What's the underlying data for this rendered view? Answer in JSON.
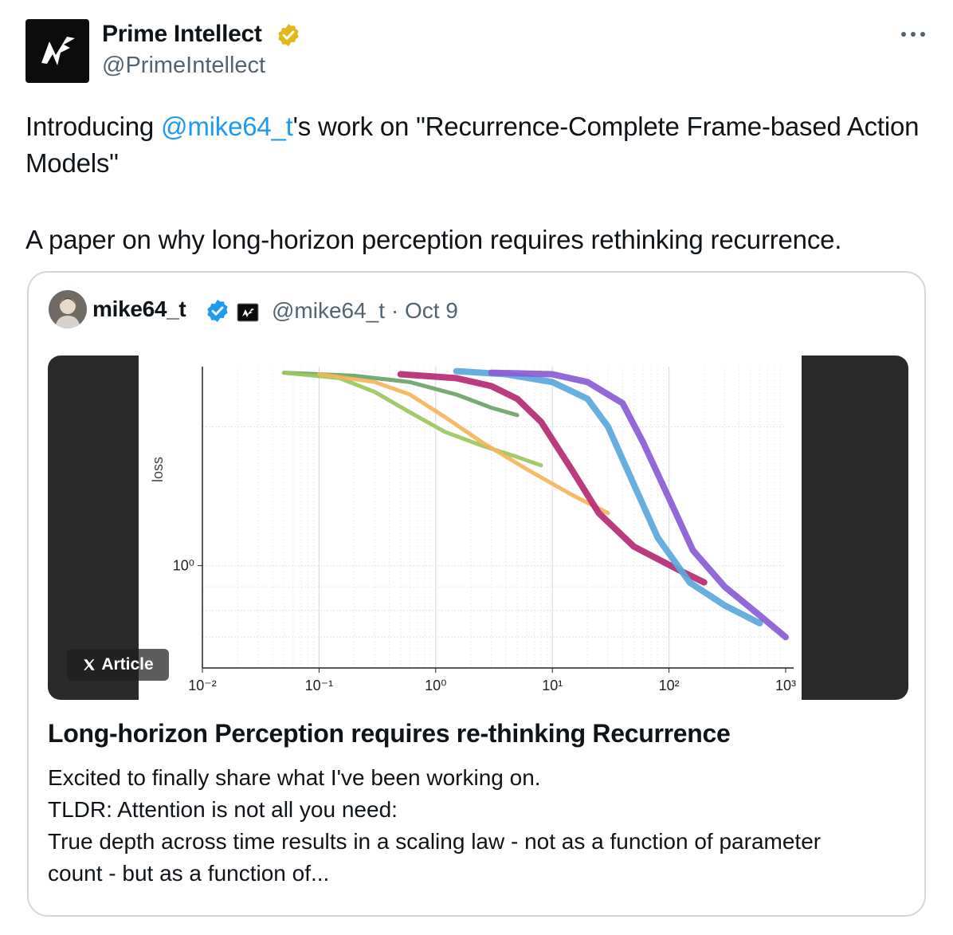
{
  "post": {
    "author_name": "Prime Intellect",
    "author_handle": "@PrimeIntellect",
    "text_before_mention": "Introducing ",
    "mention": "@mike64_t",
    "text_after_mention": "'s work on \"Recurrence-Complete Frame-based Action Models\"",
    "paragraph2": "A paper on why long-horizon perception requires rethinking recurrence."
  },
  "quoted_post": {
    "author_name": "mike64_t",
    "author_handle": "@mike64_t",
    "separator": "·",
    "date": "Oct 9",
    "article_badge": "Article",
    "title": "Long-horizon Perception requires re-thinking Recurrence",
    "body_lines": [
      "Excited to finally share what I've been working on.",
      "TLDR: Attention is not all you need:",
      "True depth across time results in a scaling law - not as a function of parameter",
      "count -  but as a function of..."
    ]
  },
  "icons": {
    "avatar": "prime-intellect-logo",
    "verified": "gold-verified-badge",
    "more": "more-horizontal-icon",
    "quote_verified": "blue-verified-badge",
    "quote_affiliate": "affiliate-badge",
    "article": "x-logo-icon"
  },
  "colors": {
    "link": "#1d9bf0",
    "muted": "#536471",
    "gold": "#e2b719",
    "blue": "#1d9bf0"
  },
  "chart_data": {
    "type": "line",
    "xscale": "log",
    "yscale": "log",
    "xlim": [
      0.01,
      1000
    ],
    "ylim": [
      0.6,
      2.7
    ],
    "xtick_labels": [
      "10⁻²",
      "10⁻¹",
      "10⁰",
      "10¹",
      "10²",
      "10³"
    ],
    "xticks": [
      0.01,
      0.1,
      1,
      10,
      100,
      1000
    ],
    "ytick_labels": [
      "10⁰"
    ],
    "yticks": [
      1
    ],
    "ylabel": "loss",
    "xlabel": "",
    "grid": true,
    "series": [
      {
        "color": "#6ba368",
        "points": [
          [
            0.05,
            2.62
          ],
          [
            0.2,
            2.58
          ],
          [
            0.6,
            2.5
          ],
          [
            1.5,
            2.35
          ],
          [
            3,
            2.2
          ],
          [
            5,
            2.12
          ]
        ]
      },
      {
        "color": "#9bc760",
        "points": [
          [
            0.05,
            2.62
          ],
          [
            0.15,
            2.55
          ],
          [
            0.3,
            2.38
          ],
          [
            0.6,
            2.15
          ],
          [
            1.2,
            1.95
          ],
          [
            2.5,
            1.82
          ],
          [
            5,
            1.72
          ],
          [
            8,
            1.65
          ]
        ]
      },
      {
        "color": "#f4b55a",
        "points": [
          [
            0.1,
            2.6
          ],
          [
            0.3,
            2.5
          ],
          [
            0.6,
            2.35
          ],
          [
            1.2,
            2.1
          ],
          [
            2.5,
            1.85
          ],
          [
            6,
            1.62
          ],
          [
            15,
            1.42
          ],
          [
            30,
            1.3
          ]
        ]
      },
      {
        "color": "#b52a73",
        "points": [
          [
            0.5,
            2.6
          ],
          [
            1.5,
            2.55
          ],
          [
            3,
            2.45
          ],
          [
            5,
            2.3
          ],
          [
            8,
            2.05
          ],
          [
            15,
            1.6
          ],
          [
            25,
            1.3
          ],
          [
            50,
            1.1
          ],
          [
            120,
            0.98
          ],
          [
            200,
            0.92
          ]
        ]
      },
      {
        "color": "#5aa8db",
        "points": [
          [
            1.5,
            2.64
          ],
          [
            4,
            2.6
          ],
          [
            10,
            2.5
          ],
          [
            20,
            2.3
          ],
          [
            30,
            2.0
          ],
          [
            50,
            1.5
          ],
          [
            80,
            1.15
          ],
          [
            150,
            0.92
          ],
          [
            300,
            0.82
          ],
          [
            600,
            0.75
          ]
        ]
      },
      {
        "color": "#8a5cd6",
        "points": [
          [
            3,
            2.62
          ],
          [
            10,
            2.6
          ],
          [
            20,
            2.5
          ],
          [
            40,
            2.25
          ],
          [
            60,
            1.85
          ],
          [
            100,
            1.4
          ],
          [
            160,
            1.08
          ],
          [
            300,
            0.9
          ],
          [
            600,
            0.78
          ],
          [
            1000,
            0.7
          ]
        ]
      }
    ]
  }
}
